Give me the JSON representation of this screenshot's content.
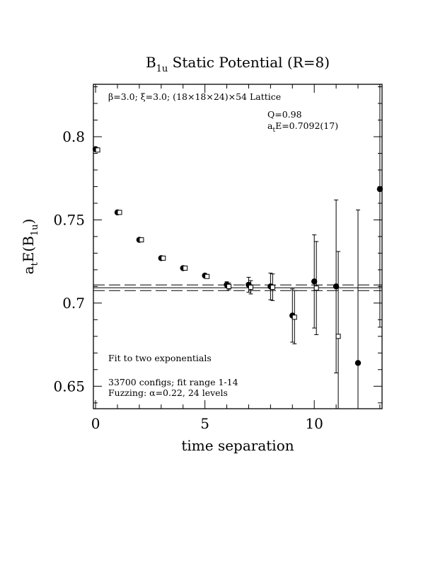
{
  "chart_data": {
    "type": "scatter",
    "title": "B",
    "title_sub": "1u",
    "title_rest": " Static Potential (R=8)",
    "ylabel": "a",
    "ylabel_sub1": "t",
    "ylabel_mid": "E(B",
    "ylabel_sub2": "1u",
    "ylabel_end": ")",
    "xlabel": "time separation",
    "xlim": [
      -0.1,
      13.1
    ],
    "ylim": [
      0.6365,
      0.8315
    ],
    "xticks": [
      0,
      5,
      10
    ],
    "xtick_labels": [
      "0",
      "5",
      "10"
    ],
    "yticks": [
      0.65,
      0.7,
      0.75,
      0.8
    ],
    "ytick_labels": [
      "0.65",
      "0.7",
      "0.75",
      "0.8"
    ],
    "grid": false,
    "series": [
      {
        "marker": "filled-circle",
        "points": [
          {
            "x": 0,
            "y": 0.7925,
            "err": 0.0
          },
          {
            "x": 1,
            "y": 0.7545,
            "err": 0.0
          },
          {
            "x": 2,
            "y": 0.738,
            "err": 0.0
          },
          {
            "x": 3,
            "y": 0.727,
            "err": 0.0
          },
          {
            "x": 4,
            "y": 0.721,
            "err": 0.0
          },
          {
            "x": 5,
            "y": 0.7165,
            "err": 0.0
          },
          {
            "x": 6,
            "y": 0.711,
            "err": 0.0018
          },
          {
            "x": 7,
            "y": 0.711,
            "err": 0.0045
          },
          {
            "x": 8,
            "y": 0.71,
            "err": 0.008
          },
          {
            "x": 9,
            "y": 0.6925,
            "err": 0.016
          },
          {
            "x": 10,
            "y": 0.713,
            "err": 0.028
          },
          {
            "x": 11,
            "y": 0.71,
            "err": 0.052
          },
          {
            "x": 12,
            "y": 0.664,
            "err": 0.092
          },
          {
            "x": 13,
            "y": 0.7685,
            "err": 0.083
          }
        ]
      },
      {
        "marker": "open-square",
        "points": [
          {
            "x": 0,
            "y": 0.792,
            "err": 0.0
          },
          {
            "x": 1,
            "y": 0.7545,
            "err": 0.0
          },
          {
            "x": 2,
            "y": 0.738,
            "err": 0.0
          },
          {
            "x": 3,
            "y": 0.727,
            "err": 0.0
          },
          {
            "x": 4,
            "y": 0.721,
            "err": 0.0
          },
          {
            "x": 5,
            "y": 0.716,
            "err": 0.0
          },
          {
            "x": 6,
            "y": 0.71,
            "err": 0.002
          },
          {
            "x": 7,
            "y": 0.7095,
            "err": 0.004
          },
          {
            "x": 8,
            "y": 0.7095,
            "err": 0.008
          },
          {
            "x": 9,
            "y": 0.6915,
            "err": 0.016
          },
          {
            "x": 10,
            "y": 0.709,
            "err": 0.028
          },
          {
            "x": 11,
            "y": 0.68,
            "err": 0.051
          }
        ]
      }
    ],
    "fit": {
      "center": 0.7092,
      "error": 0.0017,
      "center_style": "solid",
      "band_style": "dashed"
    },
    "annotations": {
      "lattice": "β=3.0; ξ=3.0; (18×18×24)×54 Lattice",
      "q_value": "Q=0.98",
      "ate_a": "a",
      "ate_sub": "t",
      "ate_rest": "E=0.7092(17)",
      "fit_desc": "Fit to two exponentials",
      "configs": "33700 configs; fit range 1-14",
      "fuzzing": "Fuzzing: α=0.22, 24 levels"
    }
  }
}
